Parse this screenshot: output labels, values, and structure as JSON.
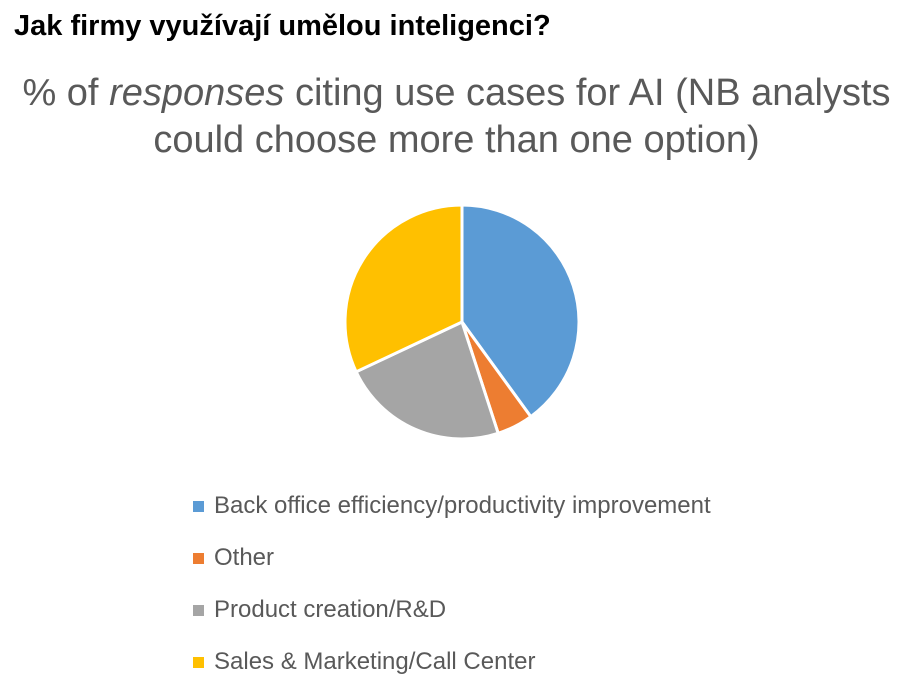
{
  "heading": "Jak firmy využívají umělou inteligenci?",
  "chart_data": {
    "type": "pie",
    "title_parts": [
      "% of ",
      "responses",
      " citing use cases for AI (NB analysts",
      "could choose more than one option)"
    ],
    "categories": [
      "Back office efficiency/productivity improvement",
      "Other",
      "Product creation/R&D",
      "Sales & Marketing/Call Center"
    ],
    "values": [
      40,
      5,
      23,
      32
    ],
    "colors": [
      "#5B9BD5",
      "#ED7D31",
      "#A5A5A5",
      "#FFC000"
    ],
    "legend_position": "bottom"
  }
}
